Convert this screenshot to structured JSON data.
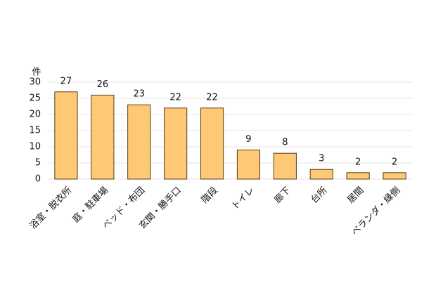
{
  "chart_data": {
    "type": "bar",
    "y_axis_label": "件",
    "categories": [
      "浴室・脱衣所",
      "庭・駐車場",
      "ベッド・布団",
      "玄関・勝手口",
      "階段",
      "トイレ",
      "廊下",
      "台所",
      "居間",
      "ベランダ・縁側"
    ],
    "values": [
      27,
      26,
      23,
      22,
      22,
      9,
      8,
      3,
      2,
      2
    ],
    "color": "#ffc875",
    "edge_color": "#5a3a1a",
    "ylim": [
      0,
      30
    ],
    "yticks": [
      0,
      5,
      10,
      15,
      20,
      25,
      30
    ],
    "grid": true
  }
}
